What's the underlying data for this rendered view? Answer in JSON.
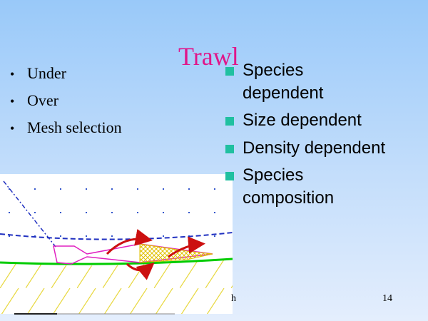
{
  "title": "Trawl",
  "left_bullets": [
    "Under",
    "Over",
    "Mesh selection"
  ],
  "right_bullets": [
    "Species dependent",
    "Size dependent",
    "Density dependent",
    "Species composition"
  ],
  "footer_fragment": "h",
  "page_number": "14"
}
